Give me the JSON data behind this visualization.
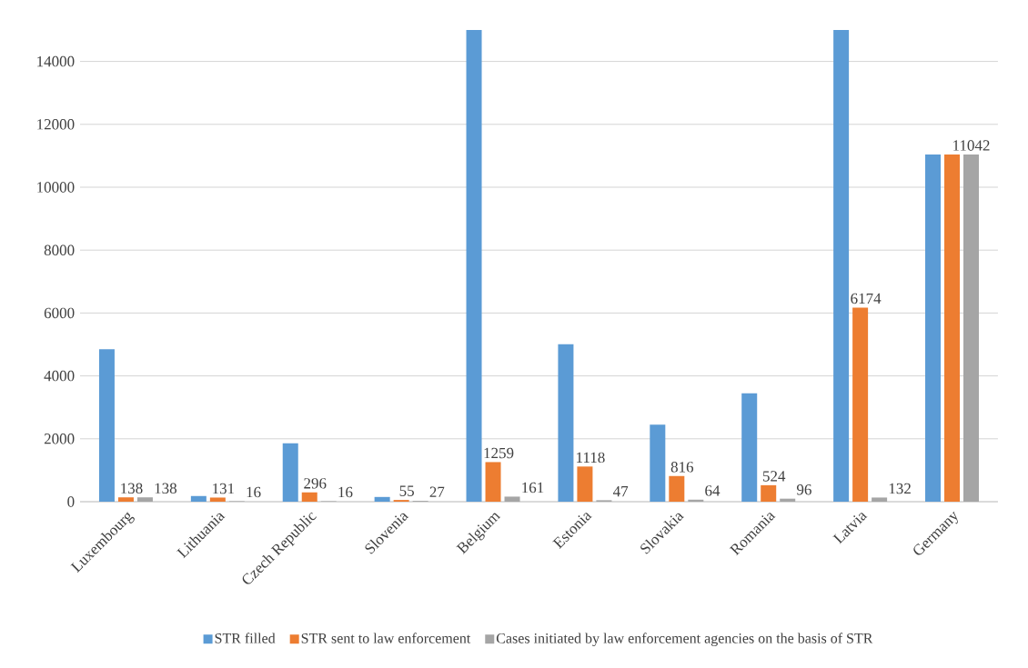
{
  "chart_data": {
    "type": "bar",
    "categories": [
      "Luxembourg",
      "Lithuania",
      "Czech Republic",
      "Slovenia",
      "Belgium",
      "Estonia",
      "Slovakia",
      "Romania",
      "Latvia",
      "Germany"
    ],
    "series": [
      {
        "name": "STR filled",
        "color": "#5b9bd5",
        "values": [
          4850,
          180,
          1860,
          150,
          15000,
          5010,
          2450,
          3450,
          15000,
          11042
        ]
      },
      {
        "name": "STR sent to law enforcement",
        "color": "#ed7d31",
        "values": [
          138,
          131,
          296,
          55,
          1259,
          1118,
          816,
          524,
          6174,
          11042
        ],
        "value_labels": [
          "138",
          "131",
          "296",
          "55",
          "1259",
          "1118",
          "816",
          "524",
          "6174",
          null
        ]
      },
      {
        "name": "Cases initiated by law enforcement agencies on the basis of STR",
        "color": "#a5a5a5",
        "values": [
          138,
          16,
          16,
          27,
          161,
          47,
          64,
          96,
          132,
          11042
        ],
        "value_labels": [
          "138",
          "16",
          "16",
          "27",
          "161",
          "47",
          "64",
          "96",
          "132",
          "11042"
        ]
      }
    ],
    "ylim": [
      0,
      15000
    ],
    "yticks": [
      0,
      2000,
      4000,
      6000,
      8000,
      10000,
      12000,
      14000
    ],
    "grid": "y",
    "legend": "bottom"
  }
}
